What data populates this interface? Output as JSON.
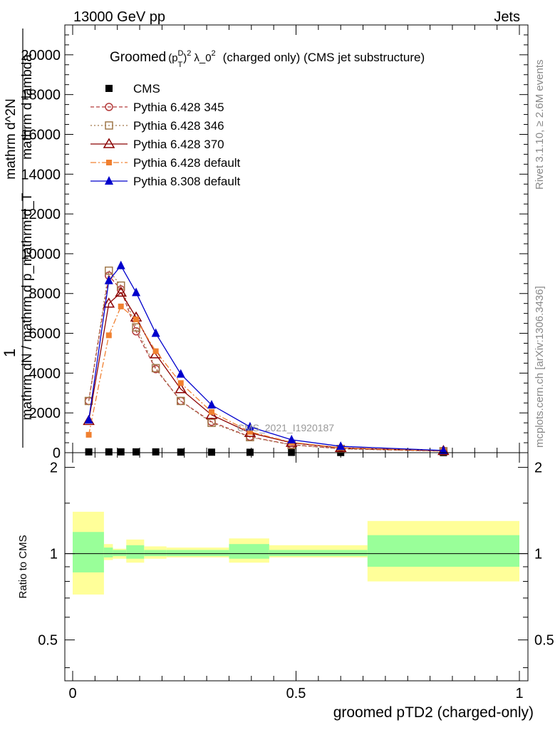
{
  "header": {
    "left": "13000 GeV pp",
    "right": "Jets"
  },
  "side_labels": {
    "rivet": "Rivet 3.1.10, ≥ 2.6M events",
    "mcplots": "mcplots.cern.ch [arXiv:1306.3436]"
  },
  "chart_data": [
    {
      "type": "line",
      "title": "Groomed (p_T^D)^2 λ_0^2 (charged only) (CMS jet substructure)",
      "title_parts": {
        "prefix": "Groomed",
        "p": "(p",
        "sup_D": "D",
        "sub_T": "T",
        "close": ")",
        "sup_2": "2",
        "lambda": "λ_0",
        "sup_2b": "2",
        "suffix": "(charged only) (CMS jet substructure)"
      },
      "ylabel_lines": [
        "1",
        "mathrm dN / mathrm d p_mathrm d_T",
        "mathrm d^2N",
        "mathrm d lambda"
      ],
      "watermark": "CMS_2021_I1920187",
      "xlim": [
        0,
        1
      ],
      "ylim": [
        0,
        21500
      ],
      "yticks": [
        0,
        2000,
        4000,
        6000,
        8000,
        10000,
        12000,
        14000,
        16000,
        18000,
        20000
      ],
      "ytick_labels": [
        "0",
        "2000",
        "4000",
        "6000",
        "8000",
        "10000",
        "12000",
        "14000",
        "16000",
        "18000",
        "20000"
      ],
      "legend_position": "top-left",
      "series": [
        {
          "name": "CMS",
          "color": "#000000",
          "marker": "square-filled",
          "line": "none",
          "x": [
            0.036,
            0.081,
            0.108,
            0.142,
            0.186,
            0.242,
            0.311,
            0.397,
            0.49,
            0.6,
            0.83
          ],
          "y": [
            40,
            40,
            40,
            40,
            40,
            30,
            25,
            20,
            15,
            10,
            5
          ]
        },
        {
          "name": "Pythia 6.428 345",
          "color": "#b33a3a",
          "marker": "circle-open",
          "line": "dashed",
          "x": [
            0.036,
            0.081,
            0.108,
            0.142,
            0.186,
            0.242,
            0.311,
            0.397,
            0.49,
            0.6,
            0.83
          ],
          "y": [
            2600,
            8900,
            8200,
            6100,
            4200,
            2600,
            1550,
            800,
            400,
            200,
            80
          ]
        },
        {
          "name": "Pythia 6.428 346",
          "color": "#a0784a",
          "marker": "square-open",
          "line": "dotted",
          "x": [
            0.036,
            0.081,
            0.108,
            0.142,
            0.186,
            0.242,
            0.311,
            0.397,
            0.49,
            0.6,
            0.83
          ],
          "y": [
            2600,
            9150,
            8400,
            6300,
            4250,
            2600,
            1500,
            780,
            390,
            190,
            75
          ]
        },
        {
          "name": "Pythia 6.428 370",
          "color": "#8b0000",
          "marker": "triangle-open",
          "line": "solid",
          "x": [
            0.036,
            0.081,
            0.108,
            0.142,
            0.186,
            0.242,
            0.311,
            0.397,
            0.49,
            0.6,
            0.83
          ],
          "y": [
            1600,
            7500,
            8050,
            6800,
            4950,
            3200,
            1900,
            1000,
            500,
            240,
            90
          ]
        },
        {
          "name": "Pythia 6.428 default",
          "color": "#f08030",
          "marker": "square-filled-small",
          "line": "dashdot",
          "x": [
            0.036,
            0.081,
            0.108,
            0.142,
            0.186,
            0.242,
            0.311,
            0.397,
            0.49,
            0.6,
            0.83
          ],
          "y": [
            900,
            5900,
            7350,
            6700,
            5100,
            3500,
            2050,
            1050,
            520,
            250,
            90
          ]
        },
        {
          "name": "Pythia 8.308 default",
          "color": "#0000cc",
          "marker": "triangle-filled",
          "line": "solid",
          "x": [
            0.036,
            0.081,
            0.108,
            0.142,
            0.186,
            0.242,
            0.311,
            0.397,
            0.49,
            0.6,
            0.83
          ],
          "y": [
            1650,
            8650,
            9400,
            8050,
            6000,
            3950,
            2400,
            1300,
            650,
            320,
            110
          ]
        }
      ]
    },
    {
      "type": "area",
      "ylabel": "Ratio to CMS",
      "xlabel": "groomed pTD2 (charged-only)",
      "xlim": [
        0,
        1
      ],
      "ylim": [
        0.36,
        2.25
      ],
      "yscale": "log",
      "yticks": [
        0.5,
        1,
        2
      ],
      "ytick_labels": [
        "0.5",
        "1",
        "2"
      ],
      "xticks": [
        0,
        0.5,
        1
      ],
      "xtick_labels": [
        "0",
        "0.5",
        "1"
      ],
      "reference_line": 1,
      "bins": [
        {
          "x": [
            0.0,
            0.07
          ],
          "yellow": [
            0.72,
            1.4
          ],
          "green": [
            0.86,
            1.19
          ]
        },
        {
          "x": [
            0.07,
            0.09
          ],
          "yellow": [
            0.95,
            1.08
          ],
          "green": [
            0.97,
            1.05
          ]
        },
        {
          "x": [
            0.09,
            0.12
          ],
          "yellow": [
            0.96,
            1.04
          ],
          "green": [
            0.98,
            1.03
          ]
        },
        {
          "x": [
            0.12,
            0.16
          ],
          "yellow": [
            0.93,
            1.12
          ],
          "green": [
            0.96,
            1.07
          ]
        },
        {
          "x": [
            0.16,
            0.21
          ],
          "yellow": [
            0.96,
            1.06
          ],
          "green": [
            0.98,
            1.03
          ]
        },
        {
          "x": [
            0.21,
            0.35
          ],
          "yellow": [
            0.97,
            1.05
          ],
          "green": [
            0.98,
            1.03
          ]
        },
        {
          "x": [
            0.35,
            0.44
          ],
          "yellow": [
            0.93,
            1.13
          ],
          "green": [
            0.96,
            1.08
          ]
        },
        {
          "x": [
            0.44,
            0.66
          ],
          "yellow": [
            0.97,
            1.07
          ],
          "green": [
            0.98,
            1.03
          ]
        },
        {
          "x": [
            0.66,
            1.0
          ],
          "yellow": [
            0.8,
            1.3
          ],
          "green": [
            0.9,
            1.16
          ]
        }
      ],
      "band_colors": {
        "yellow": "#ffff99",
        "green": "#99ff99"
      }
    }
  ]
}
